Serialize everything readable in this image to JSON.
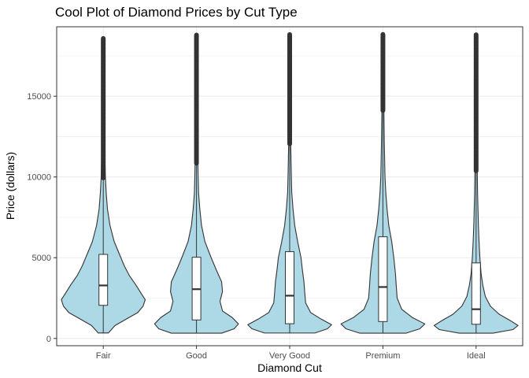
{
  "chart_data": {
    "type": "violin",
    "title": "Cool Plot of Diamond Prices by Cut Type",
    "xlabel": "Diamond Cut",
    "ylabel": "Price (dollars)",
    "ylim": [
      -450,
      19300
    ],
    "yticks": [
      0,
      5000,
      10000,
      15000
    ],
    "categories": [
      "Fair",
      "Good",
      "Very Good",
      "Premium",
      "Ideal"
    ],
    "grid": true,
    "legend": "none",
    "colors": {
      "fill": "#add8e6",
      "outline": "#333333",
      "box": "#ffffff",
      "outlier": "#333333",
      "grid": "#ebebeb",
      "panel_border": "#333333"
    },
    "series": [
      {
        "category": "Fair",
        "min": 337,
        "max": 18574,
        "q1": 2050,
        "median": 3282,
        "q3": 5206,
        "whisker_low": 337,
        "whisker_high": 9940,
        "outlier_range": [
          9940,
          18574
        ],
        "density": [
          [
            337,
            0.12
          ],
          [
            800,
            0.28
          ],
          [
            1200,
            0.55
          ],
          [
            1600,
            0.82
          ],
          [
            2000,
            0.95
          ],
          [
            2400,
            1.0
          ],
          [
            2800,
            0.9
          ],
          [
            3300,
            0.78
          ],
          [
            3900,
            0.62
          ],
          [
            4500,
            0.5
          ],
          [
            5000,
            0.42
          ],
          [
            6000,
            0.26
          ],
          [
            7000,
            0.16
          ],
          [
            8000,
            0.1
          ],
          [
            9000,
            0.07
          ],
          [
            10000,
            0.05
          ],
          [
            12000,
            0.03
          ],
          [
            14000,
            0.02
          ],
          [
            16000,
            0.015
          ],
          [
            18574,
            0.01
          ]
        ]
      },
      {
        "category": "Good",
        "min": 327,
        "max": 18788,
        "q1": 1145,
        "median": 3050,
        "q3": 5028,
        "whisker_low": 327,
        "whisker_high": 10850,
        "outlier_range": [
          10850,
          18788
        ],
        "density": [
          [
            327,
            0.6
          ],
          [
            600,
            0.9
          ],
          [
            900,
            1.0
          ],
          [
            1300,
            0.85
          ],
          [
            1700,
            0.62
          ],
          [
            2300,
            0.56
          ],
          [
            2900,
            0.62
          ],
          [
            3500,
            0.6
          ],
          [
            4200,
            0.48
          ],
          [
            5000,
            0.35
          ],
          [
            6000,
            0.2
          ],
          [
            7000,
            0.12
          ],
          [
            8000,
            0.08
          ],
          [
            9000,
            0.05
          ],
          [
            10000,
            0.04
          ],
          [
            12000,
            0.025
          ],
          [
            14000,
            0.018
          ],
          [
            16000,
            0.013
          ],
          [
            18788,
            0.01
          ]
        ]
      },
      {
        "category": "Very Good",
        "min": 336,
        "max": 18818,
        "q1": 912,
        "median": 2648,
        "q3": 5373,
        "whisker_low": 336,
        "whisker_high": 12050,
        "outlier_range": [
          12050,
          18818
        ],
        "density": [
          [
            336,
            0.6
          ],
          [
            600,
            0.9
          ],
          [
            850,
            1.0
          ],
          [
            1200,
            0.75
          ],
          [
            1600,
            0.5
          ],
          [
            2200,
            0.38
          ],
          [
            2800,
            0.36
          ],
          [
            3500,
            0.34
          ],
          [
            4300,
            0.3
          ],
          [
            5000,
            0.27
          ],
          [
            6000,
            0.19
          ],
          [
            7000,
            0.12
          ],
          [
            8000,
            0.08
          ],
          [
            9000,
            0.05
          ],
          [
            10000,
            0.04
          ],
          [
            12000,
            0.025
          ],
          [
            14000,
            0.018
          ],
          [
            16000,
            0.013
          ],
          [
            18818,
            0.01
          ]
        ]
      },
      {
        "category": "Premium",
        "min": 326,
        "max": 18823,
        "q1": 1046,
        "median": 3185,
        "q3": 6296,
        "whisker_low": 326,
        "whisker_high": 14120,
        "outlier_range": [
          14120,
          18823
        ],
        "density": [
          [
            326,
            0.55
          ],
          [
            600,
            0.88
          ],
          [
            900,
            1.0
          ],
          [
            1300,
            0.7
          ],
          [
            1800,
            0.45
          ],
          [
            2500,
            0.34
          ],
          [
            3200,
            0.32
          ],
          [
            4000,
            0.3
          ],
          [
            5000,
            0.26
          ],
          [
            6000,
            0.21
          ],
          [
            7000,
            0.14
          ],
          [
            8000,
            0.1
          ],
          [
            9000,
            0.07
          ],
          [
            10000,
            0.05
          ],
          [
            12000,
            0.035
          ],
          [
            14000,
            0.025
          ],
          [
            16000,
            0.018
          ],
          [
            18823,
            0.01
          ]
        ]
      },
      {
        "category": "Ideal",
        "min": 326,
        "max": 18806,
        "q1": 878,
        "median": 1810,
        "q3": 4678,
        "whisker_low": 326,
        "whisker_high": 10380,
        "outlier_range": [
          10380,
          18806
        ],
        "density": [
          [
            326,
            0.4
          ],
          [
            550,
            0.88
          ],
          [
            800,
            1.0
          ],
          [
            1100,
            0.82
          ],
          [
            1500,
            0.55
          ],
          [
            2000,
            0.34
          ],
          [
            2600,
            0.22
          ],
          [
            3300,
            0.16
          ],
          [
            4000,
            0.12
          ],
          [
            5000,
            0.09
          ],
          [
            6000,
            0.07
          ],
          [
            7000,
            0.055
          ],
          [
            8000,
            0.045
          ],
          [
            9000,
            0.035
          ],
          [
            10000,
            0.03
          ],
          [
            12000,
            0.022
          ],
          [
            14000,
            0.016
          ],
          [
            16000,
            0.012
          ],
          [
            18806,
            0.01
          ]
        ]
      }
    ]
  }
}
